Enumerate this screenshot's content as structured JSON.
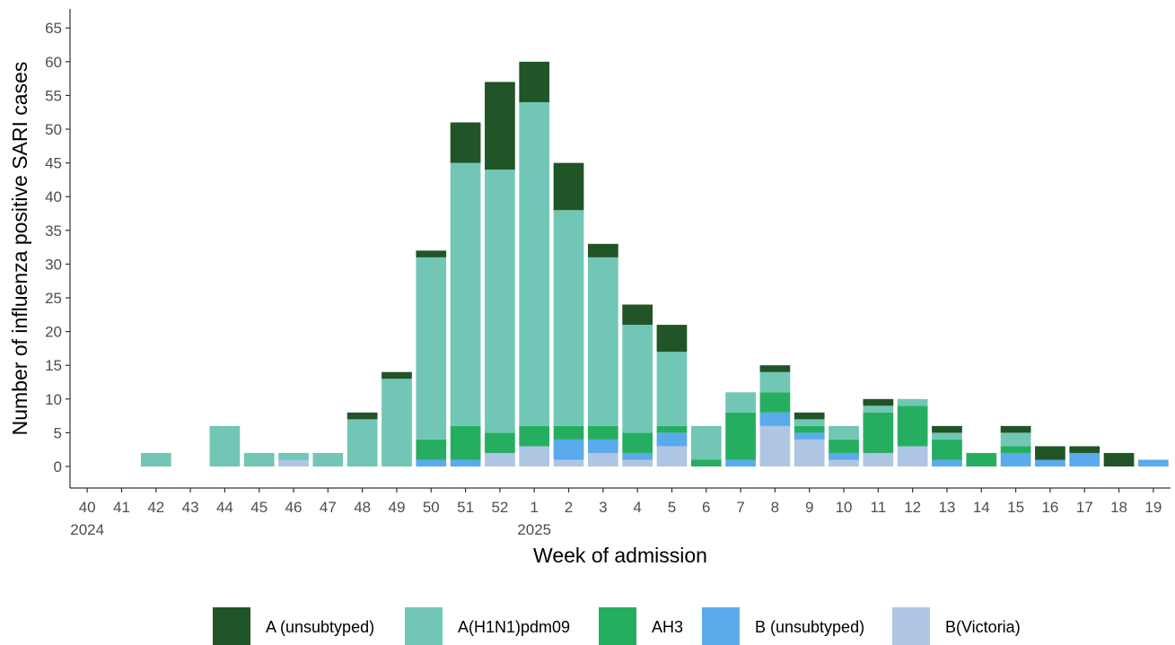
{
  "chart_data": {
    "type": "bar",
    "stacked": true,
    "title": "",
    "xlabel": "Week of admission",
    "ylabel": "Number of influenza positive SARI cases",
    "ylim": [
      0,
      65
    ],
    "yticks": [
      0,
      5,
      10,
      15,
      20,
      25,
      30,
      35,
      40,
      45,
      50,
      55,
      60,
      65
    ],
    "grid": false,
    "legend_position": "bottom",
    "categories": [
      "40",
      "41",
      "42",
      "43",
      "44",
      "45",
      "46",
      "47",
      "48",
      "49",
      "50",
      "51",
      "52",
      "1",
      "2",
      "3",
      "4",
      "5",
      "6",
      "7",
      "8",
      "9",
      "10",
      "11",
      "12",
      "13",
      "14",
      "15",
      "16",
      "17",
      "18",
      "19"
    ],
    "year_labels": [
      {
        "category": "40",
        "label": "2024"
      },
      {
        "category": "1",
        "label": "2025"
      }
    ],
    "series": [
      {
        "name": "B(Victoria)",
        "color": "#aec5e4",
        "values": [
          0,
          0,
          0,
          0,
          0,
          0,
          1,
          0,
          0,
          0,
          0,
          0,
          2,
          3,
          1,
          2,
          1,
          3,
          0,
          0,
          6,
          4,
          1,
          2,
          3,
          0,
          0,
          0,
          0,
          0,
          0,
          0
        ]
      },
      {
        "name": "B (unsubtyped)",
        "color": "#5aaaec",
        "values": [
          0,
          0,
          0,
          0,
          0,
          0,
          0,
          0,
          0,
          0,
          1,
          1,
          0,
          0,
          3,
          2,
          1,
          2,
          0,
          1,
          2,
          1,
          1,
          0,
          0,
          1,
          0,
          2,
          1,
          2,
          0,
          1
        ]
      },
      {
        "name": "AH3",
        "color": "#26ae60",
        "values": [
          0,
          0,
          0,
          0,
          0,
          0,
          0,
          0,
          0,
          0,
          3,
          5,
          3,
          3,
          2,
          2,
          3,
          1,
          1,
          7,
          3,
          1,
          2,
          6,
          6,
          3,
          2,
          1,
          0,
          0,
          0,
          0
        ]
      },
      {
        "name": "A(H1N1)pdm09",
        "color": "#72c6b5",
        "values": [
          0,
          0,
          2,
          0,
          6,
          2,
          1,
          2,
          7,
          13,
          27,
          39,
          39,
          48,
          32,
          25,
          16,
          11,
          5,
          3,
          3,
          1,
          2,
          1,
          1,
          1,
          0,
          2,
          0,
          0,
          0,
          0
        ]
      },
      {
        "name": "A (unsubtyped)",
        "color": "#215427",
        "values": [
          0,
          0,
          0,
          0,
          0,
          0,
          0,
          0,
          1,
          1,
          1,
          6,
          13,
          6,
          7,
          2,
          3,
          4,
          0,
          0,
          1,
          1,
          0,
          1,
          0,
          1,
          0,
          1,
          2,
          1,
          2,
          0
        ]
      }
    ],
    "legend_order": [
      "A (unsubtyped)",
      "A(H1N1)pdm09",
      "AH3",
      "B (unsubtyped)",
      "B(Victoria)"
    ]
  }
}
